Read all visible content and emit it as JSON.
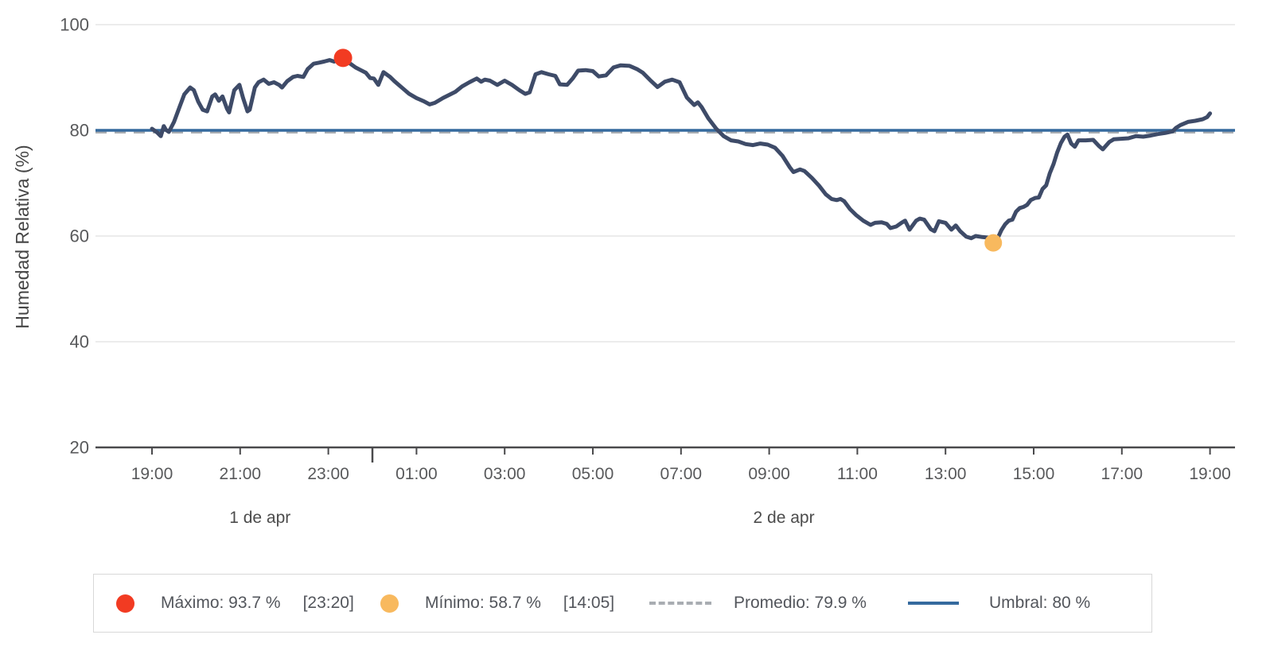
{
  "colors": {
    "series_line": "#3e4b68",
    "umbral_line": "#356a9e",
    "promedio_line": "#a9adb2",
    "max_marker": "#f23b22",
    "min_marker": "#f8b95e",
    "gridline": "#ececec",
    "axis_line": "#4a4a4c",
    "tick_text": "#58595b",
    "day_text": "#4c4c4c",
    "axis_title_text": "#454545",
    "legend_text": "#53565c",
    "legend_border": "#d8d8d8"
  },
  "y_axis": {
    "title": "Humedad Relativa (%)",
    "ticks": [
      100,
      80,
      60,
      40,
      20
    ]
  },
  "x_axis": {
    "tick_labels": [
      "19:00",
      "21:00",
      "23:00",
      "01:00",
      "03:00",
      "05:00",
      "07:00",
      "09:00",
      "11:00",
      "13:00",
      "15:00",
      "17:00",
      "19:00"
    ],
    "day_labels": [
      {
        "label": "1 de apr",
        "center_minutes": 147
      },
      {
        "label": "2 de apr",
        "center_minutes": 860
      }
    ]
  },
  "legend": {
    "maximo": {
      "name": "Máximo: 93.7 %",
      "time": "[23:20]"
    },
    "minimo": {
      "name": "Mínimo: 58.7 %",
      "time": "[14:05]"
    },
    "promedio": {
      "name": "Promedio: 79.9 %"
    },
    "umbral": {
      "name": "Umbral: 80 %"
    }
  },
  "chart_data": {
    "type": "line",
    "title": "",
    "xlabel": "",
    "ylabel": "Humedad Relativa (%)",
    "ylim": [
      20,
      100
    ],
    "y_ticks": [
      20,
      40,
      60,
      80,
      100
    ],
    "grid": "horizontal-only",
    "legend_position": "bottom-boxed",
    "x_start_label": "19:00 (1 de apr)",
    "x_unit": "minutes since 19:00 of 1 de apr",
    "x_tick_interval_minutes": 120,
    "x_tick_labels": [
      "19:00",
      "21:00",
      "23:00",
      "01:00",
      "03:00",
      "05:00",
      "07:00",
      "09:00",
      "11:00",
      "13:00",
      "15:00",
      "17:00",
      "19:00"
    ],
    "umbral_threshold": 80,
    "promedio_average": 79.9,
    "max_point": {
      "value": 93.7,
      "time": "23:20",
      "minutes": 260
    },
    "min_point": {
      "value": 58.7,
      "time": "14:05",
      "minutes": 1145
    },
    "series": [
      {
        "name": "Humedad Relativa",
        "points": [
          [
            0,
            80.3
          ],
          [
            7,
            79.6
          ],
          [
            12,
            78.9
          ],
          [
            16,
            80.8
          ],
          [
            19,
            80.1
          ],
          [
            23,
            79.7
          ],
          [
            30,
            81.6
          ],
          [
            38,
            84.6
          ],
          [
            44,
            86.8
          ],
          [
            52,
            88.1
          ],
          [
            57,
            87.6
          ],
          [
            63,
            85.4
          ],
          [
            69,
            83.9
          ],
          [
            75,
            83.6
          ],
          [
            82,
            86.4
          ],
          [
            86,
            86.8
          ],
          [
            91,
            85.6
          ],
          [
            96,
            86.4
          ],
          [
            102,
            84.1
          ],
          [
            105,
            83.4
          ],
          [
            112,
            87.6
          ],
          [
            119,
            88.6
          ],
          [
            124,
            86.1
          ],
          [
            130,
            83.6
          ],
          [
            133,
            83.9
          ],
          [
            140,
            88.1
          ],
          [
            145,
            89.1
          ],
          [
            152,
            89.6
          ],
          [
            159,
            88.8
          ],
          [
            166,
            89.1
          ],
          [
            173,
            88.6
          ],
          [
            177,
            88.1
          ],
          [
            184,
            89.3
          ],
          [
            192,
            90.1
          ],
          [
            198,
            90.3
          ],
          [
            206,
            90.1
          ],
          [
            212,
            91.6
          ],
          [
            220,
            92.6
          ],
          [
            227,
            92.8
          ],
          [
            234,
            93.0
          ],
          [
            242,
            93.3
          ],
          [
            248,
            93.0
          ],
          [
            253,
            93.5
          ],
          [
            260,
            93.7
          ],
          [
            266,
            92.9
          ],
          [
            270,
            92.6
          ],
          [
            277,
            91.9
          ],
          [
            284,
            91.4
          ],
          [
            291,
            90.9
          ],
          [
            297,
            89.9
          ],
          [
            302,
            89.8
          ],
          [
            308,
            88.6
          ],
          [
            315,
            91.0
          ],
          [
            324,
            90.1
          ],
          [
            330,
            89.3
          ],
          [
            340,
            88.1
          ],
          [
            350,
            86.9
          ],
          [
            360,
            86.1
          ],
          [
            370,
            85.5
          ],
          [
            378,
            84.9
          ],
          [
            385,
            85.2
          ],
          [
            396,
            86.1
          ],
          [
            403,
            86.6
          ],
          [
            413,
            87.3
          ],
          [
            422,
            88.3
          ],
          [
            432,
            89.1
          ],
          [
            442,
            89.8
          ],
          [
            448,
            89.2
          ],
          [
            453,
            89.6
          ],
          [
            460,
            89.4
          ],
          [
            470,
            88.6
          ],
          [
            480,
            89.4
          ],
          [
            490,
            88.6
          ],
          [
            500,
            87.6
          ],
          [
            508,
            86.9
          ],
          [
            514,
            87.2
          ],
          [
            522,
            90.6
          ],
          [
            530,
            91.0
          ],
          [
            540,
            90.6
          ],
          [
            549,
            90.3
          ],
          [
            555,
            88.7
          ],
          [
            565,
            88.6
          ],
          [
            573,
            89.9
          ],
          [
            580,
            91.3
          ],
          [
            590,
            91.4
          ],
          [
            600,
            91.2
          ],
          [
            608,
            90.2
          ],
          [
            618,
            90.4
          ],
          [
            628,
            91.9
          ],
          [
            638,
            92.3
          ],
          [
            650,
            92.2
          ],
          [
            660,
            91.6
          ],
          [
            668,
            90.9
          ],
          [
            678,
            89.5
          ],
          [
            688,
            88.2
          ],
          [
            698,
            89.2
          ],
          [
            708,
            89.6
          ],
          [
            718,
            89.1
          ],
          [
            728,
            86.2
          ],
          [
            738,
            84.8
          ],
          [
            743,
            85.3
          ],
          [
            748,
            84.4
          ],
          [
            757,
            82.3
          ],
          [
            768,
            80.3
          ],
          [
            778,
            78.9
          ],
          [
            788,
            78.1
          ],
          [
            798,
            77.9
          ],
          [
            808,
            77.4
          ],
          [
            818,
            77.2
          ],
          [
            828,
            77.5
          ],
          [
            838,
            77.3
          ],
          [
            848,
            76.7
          ],
          [
            858,
            75.2
          ],
          [
            868,
            73.0
          ],
          [
            873,
            72.1
          ],
          [
            882,
            72.6
          ],
          [
            888,
            72.3
          ],
          [
            898,
            71.0
          ],
          [
            908,
            69.5
          ],
          [
            917,
            67.9
          ],
          [
            925,
            67.0
          ],
          [
            932,
            66.8
          ],
          [
            937,
            67.0
          ],
          [
            942,
            66.6
          ],
          [
            950,
            65.1
          ],
          [
            958,
            64.0
          ],
          [
            968,
            62.9
          ],
          [
            978,
            62.1
          ],
          [
            984,
            62.5
          ],
          [
            993,
            62.6
          ],
          [
            1000,
            62.3
          ],
          [
            1005,
            61.5
          ],
          [
            1013,
            61.8
          ],
          [
            1020,
            62.5
          ],
          [
            1025,
            62.9
          ],
          [
            1031,
            61.2
          ],
          [
            1040,
            62.9
          ],
          [
            1045,
            63.3
          ],
          [
            1051,
            63.1
          ],
          [
            1060,
            61.3
          ],
          [
            1065,
            60.9
          ],
          [
            1071,
            62.8
          ],
          [
            1080,
            62.5
          ],
          [
            1088,
            61.2
          ],
          [
            1094,
            62.0
          ],
          [
            1100,
            60.9
          ],
          [
            1108,
            59.9
          ],
          [
            1115,
            59.6
          ],
          [
            1121,
            60.0
          ],
          [
            1130,
            59.8
          ],
          [
            1138,
            59.7
          ],
          [
            1145,
            58.7
          ],
          [
            1151,
            59.6
          ],
          [
            1156,
            61.1
          ],
          [
            1161,
            62.2
          ],
          [
            1166,
            62.9
          ],
          [
            1171,
            63.1
          ],
          [
            1176,
            64.6
          ],
          [
            1181,
            65.3
          ],
          [
            1186,
            65.5
          ],
          [
            1191,
            65.9
          ],
          [
            1196,
            66.8
          ],
          [
            1202,
            67.2
          ],
          [
            1207,
            67.3
          ],
          [
            1212,
            68.9
          ],
          [
            1217,
            69.6
          ],
          [
            1222,
            71.9
          ],
          [
            1227,
            73.6
          ],
          [
            1232,
            75.8
          ],
          [
            1237,
            77.6
          ],
          [
            1242,
            78.8
          ],
          [
            1246,
            79.2
          ],
          [
            1251,
            77.5
          ],
          [
            1256,
            76.9
          ],
          [
            1261,
            78.1
          ],
          [
            1271,
            78.1
          ],
          [
            1281,
            78.2
          ],
          [
            1289,
            77.0
          ],
          [
            1294,
            76.4
          ],
          [
            1303,
            77.8
          ],
          [
            1309,
            78.3
          ],
          [
            1319,
            78.4
          ],
          [
            1329,
            78.5
          ],
          [
            1339,
            78.9
          ],
          [
            1349,
            78.8
          ],
          [
            1359,
            79.0
          ],
          [
            1369,
            79.3
          ],
          [
            1379,
            79.5
          ],
          [
            1389,
            79.8
          ],
          [
            1394,
            80.5
          ],
          [
            1400,
            81.0
          ],
          [
            1410,
            81.6
          ],
          [
            1420,
            81.8
          ],
          [
            1430,
            82.1
          ],
          [
            1436,
            82.5
          ],
          [
            1440,
            83.2
          ]
        ]
      }
    ]
  }
}
